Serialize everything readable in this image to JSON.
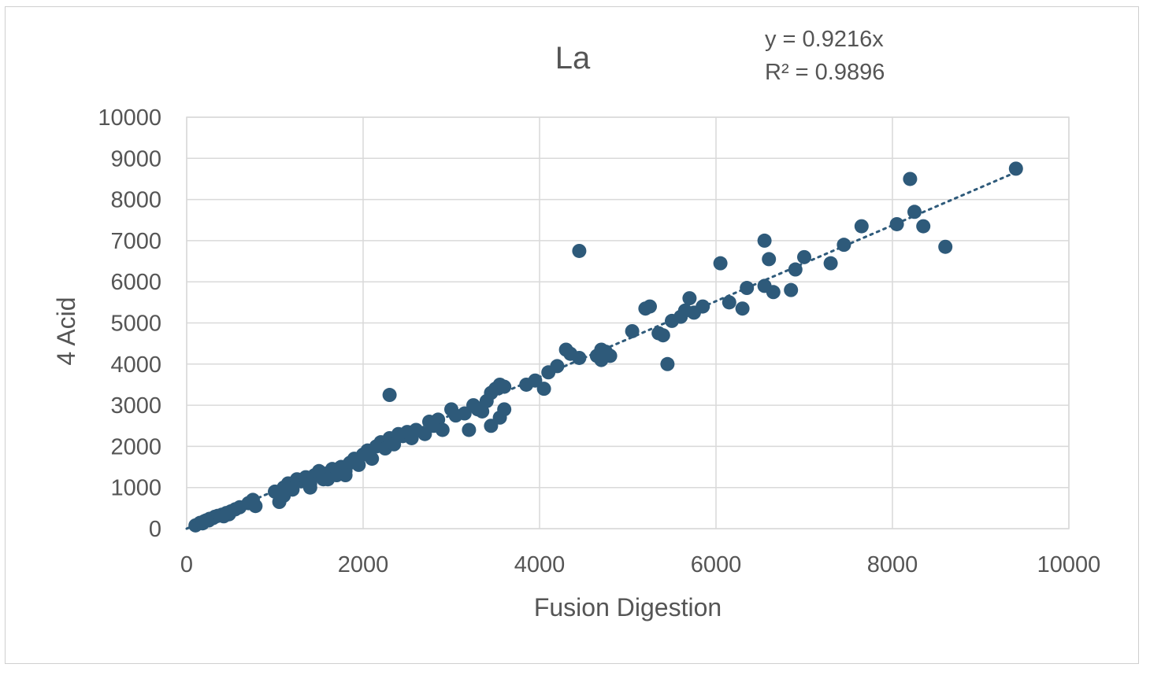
{
  "chart_data": {
    "type": "scatter",
    "title": "La",
    "xlabel": "Fusion Digestion",
    "ylabel": "4 Acid",
    "xlim": [
      0,
      10000
    ],
    "ylim": [
      0,
      10000
    ],
    "x_ticks": [
      0,
      2000,
      4000,
      6000,
      8000,
      10000
    ],
    "y_ticks": [
      0,
      1000,
      2000,
      3000,
      4000,
      5000,
      6000,
      7000,
      8000,
      9000,
      10000
    ],
    "grid": true,
    "legend": "none",
    "trendline": {
      "equation_label": "y = 0.9216x",
      "r2_label": "R² = 0.9896",
      "slope": 0.9216,
      "intercept": 0
    },
    "marker_color": "#2e5a7a",
    "series": [
      {
        "points": [
          [
            100,
            80
          ],
          [
            150,
            140
          ],
          [
            200,
            180
          ],
          [
            250,
            200
          ],
          [
            300,
            260
          ],
          [
            350,
            310
          ],
          [
            400,
            340
          ],
          [
            450,
            380
          ],
          [
            500,
            420
          ],
          [
            550,
            470
          ],
          [
            600,
            520
          ],
          [
            700,
            620
          ],
          [
            750,
            700
          ],
          [
            780,
            550
          ],
          [
            180,
            130
          ],
          [
            260,
            240
          ],
          [
            320,
            290
          ],
          [
            420,
            300
          ],
          [
            480,
            350
          ],
          [
            220,
            200
          ],
          [
            1000,
            900
          ],
          [
            1050,
            650
          ],
          [
            1100,
            1000
          ],
          [
            1150,
            1100
          ],
          [
            1200,
            1050
          ],
          [
            1250,
            1200
          ],
          [
            1300,
            1150
          ],
          [
            1350,
            1250
          ],
          [
            1400,
            1000
          ],
          [
            1450,
            1300
          ],
          [
            1500,
            1400
          ],
          [
            1550,
            1200
          ],
          [
            1600,
            1350
          ],
          [
            1650,
            1450
          ],
          [
            1700,
            1300
          ],
          [
            1750,
            1500
          ],
          [
            1800,
            1400
          ],
          [
            1850,
            1600
          ],
          [
            1900,
            1700
          ],
          [
            1950,
            1550
          ],
          [
            1100,
            800
          ],
          [
            1200,
            950
          ],
          [
            1400,
            1100
          ],
          [
            1600,
            1200
          ],
          [
            1800,
            1300
          ],
          [
            2000,
            1800
          ],
          [
            2050,
            1900
          ],
          [
            2100,
            1700
          ],
          [
            2150,
            2000
          ],
          [
            2200,
            2100
          ],
          [
            2250,
            1950
          ],
          [
            2300,
            2200
          ],
          [
            2350,
            2050
          ],
          [
            2400,
            2300
          ],
          [
            2450,
            2250
          ],
          [
            2500,
            2350
          ],
          [
            2550,
            2200
          ],
          [
            2600,
            2400
          ],
          [
            2700,
            2300
          ],
          [
            2750,
            2600
          ],
          [
            2800,
            2500
          ],
          [
            2850,
            2650
          ],
          [
            2900,
            2400
          ],
          [
            3000,
            2900
          ],
          [
            3050,
            2750
          ],
          [
            3150,
            2800
          ],
          [
            3200,
            2400
          ],
          [
            3250,
            3000
          ],
          [
            3300,
            2900
          ],
          [
            3350,
            2850
          ],
          [
            3400,
            3100
          ],
          [
            3450,
            3300
          ],
          [
            3500,
            3400
          ],
          [
            3550,
            3500
          ],
          [
            3600,
            3450
          ],
          [
            3450,
            2500
          ],
          [
            3550,
            2700
          ],
          [
            3600,
            2900
          ],
          [
            3850,
            3500
          ],
          [
            3950,
            3600
          ],
          [
            4050,
            3400
          ],
          [
            4100,
            3800
          ],
          [
            4200,
            3950
          ],
          [
            4300,
            4350
          ],
          [
            4350,
            4250
          ],
          [
            4450,
            4150
          ],
          [
            4450,
            6750
          ],
          [
            4650,
            4200
          ],
          [
            4700,
            4350
          ],
          [
            4750,
            4300
          ],
          [
            4700,
            4100
          ],
          [
            4800,
            4200
          ],
          [
            2300,
            3250
          ],
          [
            5050,
            4800
          ],
          [
            5200,
            5350
          ],
          [
            5250,
            5400
          ],
          [
            5350,
            4750
          ],
          [
            5400,
            4700
          ],
          [
            5450,
            4000
          ],
          [
            5500,
            5050
          ],
          [
            5600,
            5150
          ],
          [
            5650,
            5300
          ],
          [
            5700,
            5600
          ],
          [
            5750,
            5250
          ],
          [
            5850,
            5400
          ],
          [
            6050,
            6450
          ],
          [
            6150,
            5500
          ],
          [
            6300,
            5350
          ],
          [
            6350,
            5850
          ],
          [
            6550,
            5900
          ],
          [
            6550,
            7000
          ],
          [
            6600,
            6550
          ],
          [
            6650,
            5750
          ],
          [
            6850,
            5800
          ],
          [
            6900,
            6300
          ],
          [
            7000,
            6600
          ],
          [
            7300,
            6450
          ],
          [
            7450,
            6900
          ],
          [
            7650,
            7350
          ],
          [
            8050,
            7400
          ],
          [
            8200,
            8500
          ],
          [
            8250,
            7700
          ],
          [
            8350,
            7350
          ],
          [
            8600,
            6850
          ],
          [
            9400,
            8750
          ]
        ]
      }
    ]
  }
}
